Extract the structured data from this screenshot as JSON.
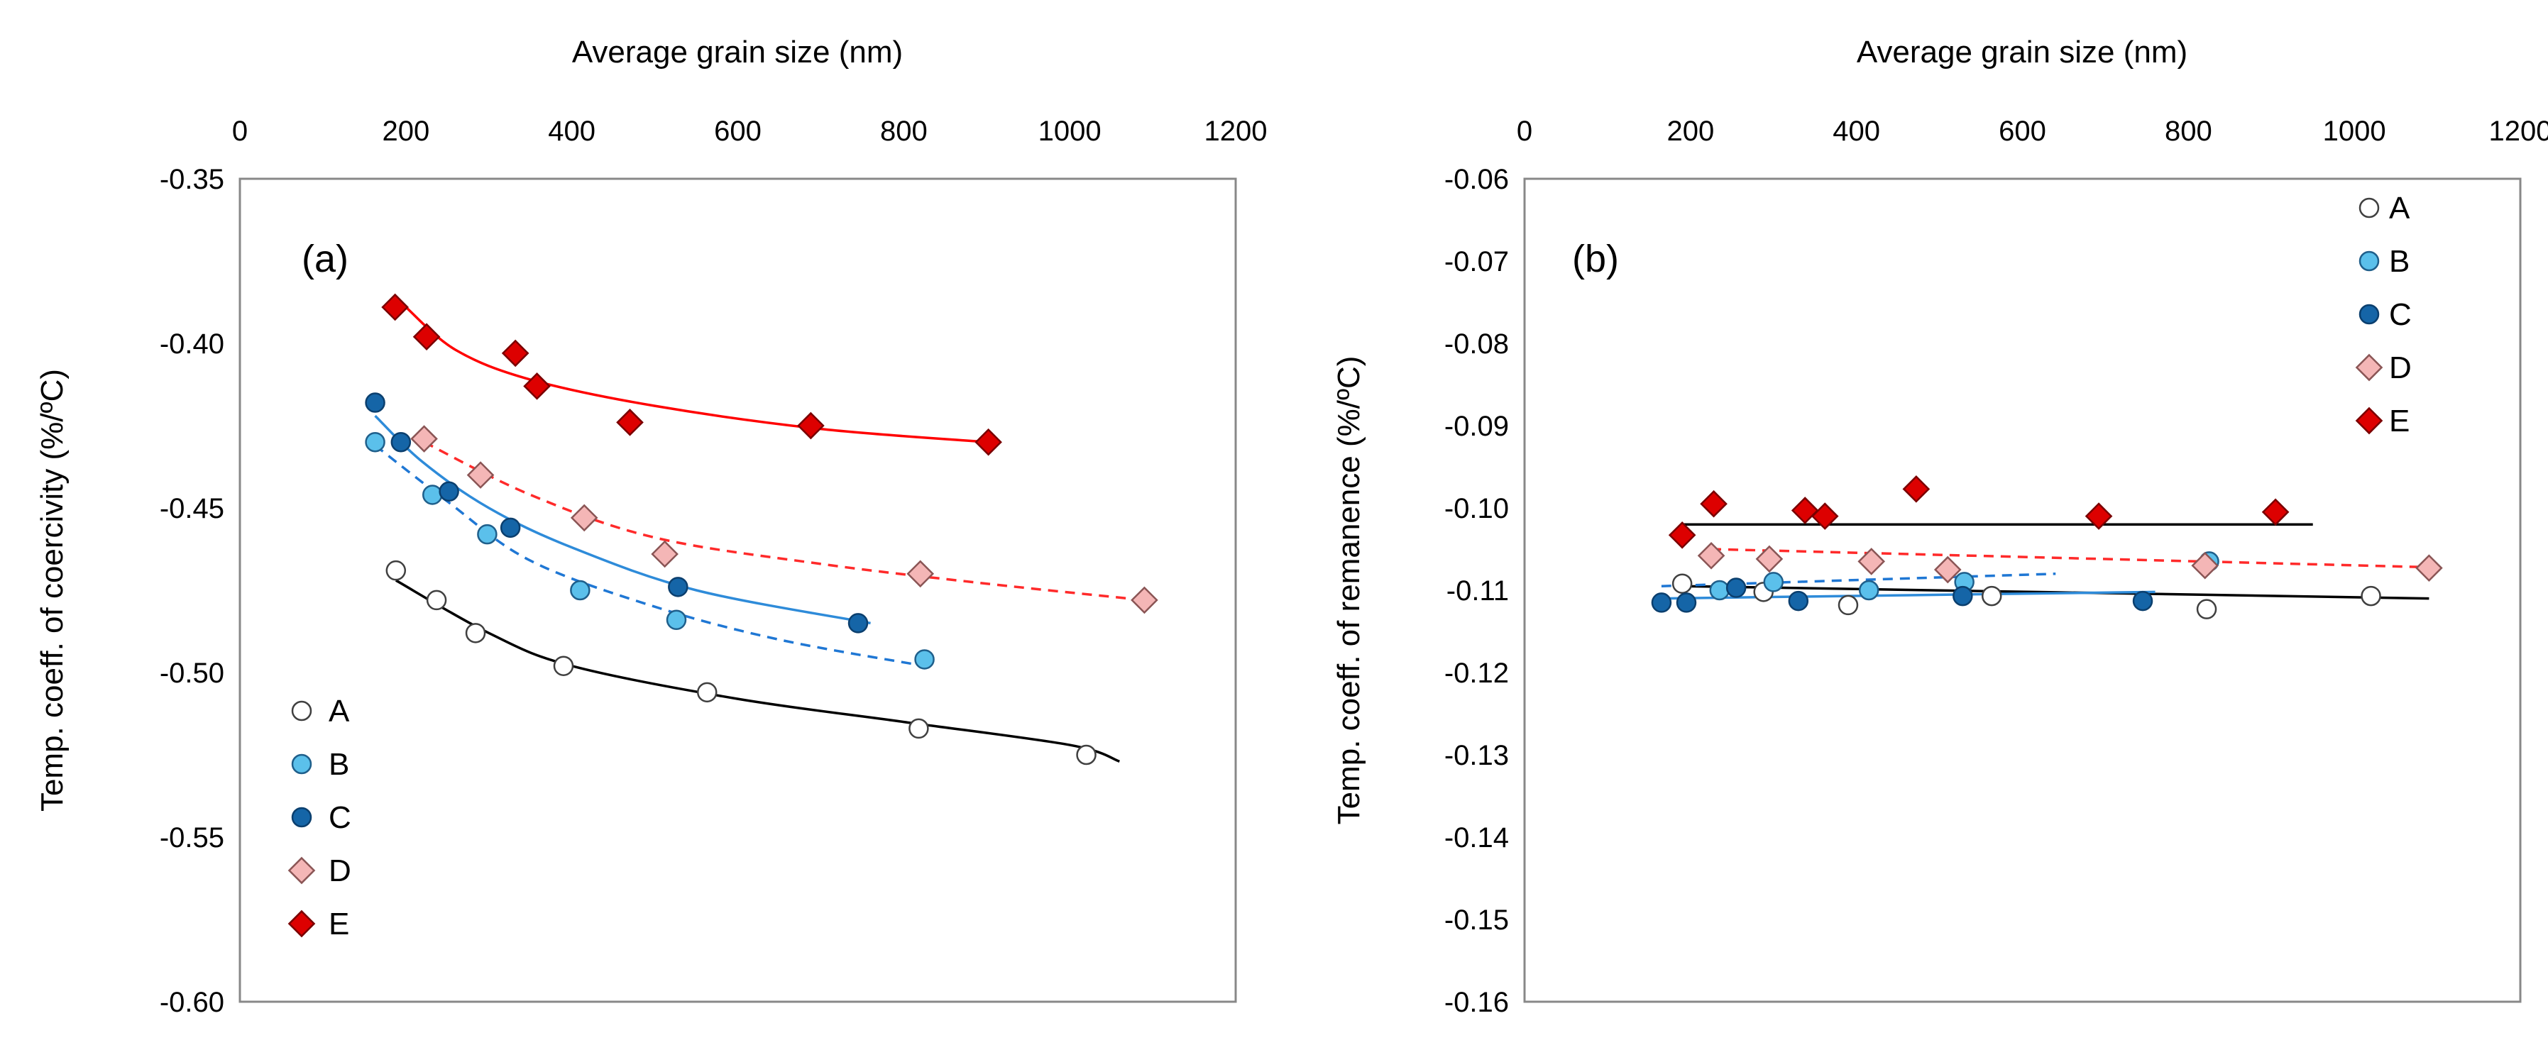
{
  "chart_data": [
    {
      "panel": "(a)",
      "type": "scatter",
      "xlabel": "Average  grain  size (nm)",
      "ylabel": "Temp. coeff.  of coercivity  (%/ºC)",
      "xlim": [
        0,
        1200
      ],
      "ylim": [
        -0.6,
        -0.35
      ],
      "xticks": [
        0,
        200,
        400,
        600,
        800,
        1000,
        1200
      ],
      "yticks": [
        -0.35,
        -0.4,
        -0.45,
        -0.5,
        -0.55,
        -0.6
      ],
      "ytick_labels": [
        "-0.35",
        "-0.40",
        "-0.45",
        "-0.50",
        "-0.55",
        "-0.60"
      ],
      "grid": false,
      "legend_position": "bottom-left",
      "series": [
        {
          "name": "A",
          "marker": "circle",
          "fill": "#ffffff",
          "stroke": "#404040",
          "points": [
            [
              188,
              -0.469
            ],
            [
              237,
              -0.478
            ],
            [
              284,
              -0.488
            ],
            [
              390,
              -0.498
            ],
            [
              563,
              -0.506
            ],
            [
              818,
              -0.517
            ],
            [
              1020,
              -0.525
            ]
          ],
          "fit": [
            [
              188,
              -0.472
            ],
            [
              300,
              -0.488
            ],
            [
              400,
              -0.498
            ],
            [
              600,
              -0.508
            ],
            [
              800,
              -0.515
            ],
            [
              1000,
              -0.522
            ],
            [
              1060,
              -0.527
            ]
          ],
          "fit_color": "#000000",
          "fit_dash": false
        },
        {
          "name": "B",
          "marker": "circle",
          "fill": "#5bc0eb",
          "stroke": "#1f5f8b",
          "points": [
            [
              163,
              -0.43
            ],
            [
              232,
              -0.446
            ],
            [
              298,
              -0.458
            ],
            [
              410,
              -0.475
            ],
            [
              526,
              -0.484
            ],
            [
              825,
              -0.496
            ]
          ],
          "fit": [
            [
              163,
              -0.431
            ],
            [
              250,
              -0.448
            ],
            [
              350,
              -0.466
            ],
            [
              500,
              -0.48
            ],
            [
              650,
              -0.49
            ],
            [
              825,
              -0.498
            ]
          ],
          "fit_color": "#1f77d4",
          "fit_dash": true
        },
        {
          "name": "C",
          "marker": "circle",
          "fill": "#1565a7",
          "stroke": "#0b3f6e",
          "points": [
            [
              163,
              -0.418
            ],
            [
              194,
              -0.43
            ],
            [
              252,
              -0.445
            ],
            [
              326,
              -0.456
            ],
            [
              528,
              -0.474
            ],
            [
              745,
              -0.485
            ]
          ],
          "fit": [
            [
              163,
              -0.422
            ],
            [
              220,
              -0.436
            ],
            [
              300,
              -0.45
            ],
            [
              400,
              -0.462
            ],
            [
              550,
              -0.475
            ],
            [
              760,
              -0.485
            ]
          ],
          "fit_color": "#2e8bd9",
          "fit_dash": false
        },
        {
          "name": "D",
          "marker": "diamond",
          "fill": "#f4b6b6",
          "stroke": "#8a5555",
          "points": [
            [
              222,
              -0.429
            ],
            [
              290,
              -0.44
            ],
            [
              415,
              -0.453
            ],
            [
              512,
              -0.464
            ],
            [
              820,
              -0.47
            ],
            [
              1090,
              -0.478
            ]
          ],
          "fit": [
            [
              222,
              -0.43
            ],
            [
              350,
              -0.446
            ],
            [
              500,
              -0.459
            ],
            [
              700,
              -0.467
            ],
            [
              900,
              -0.473
            ],
            [
              1090,
              -0.478
            ]
          ],
          "fit_color": "#ff2a2a",
          "fit_dash": true
        },
        {
          "name": "E",
          "marker": "diamond",
          "fill": "#dd0000",
          "stroke": "#7a0000",
          "points": [
            [
              187,
              -0.389
            ],
            [
              225,
              -0.398
            ],
            [
              332,
              -0.403
            ],
            [
              358,
              -0.413
            ],
            [
              470,
              -0.424
            ],
            [
              688,
              -0.425
            ],
            [
              902,
              -0.43
            ]
          ],
          "fit": [
            [
              200,
              -0.389
            ],
            [
              260,
              -0.402
            ],
            [
              350,
              -0.411
            ],
            [
              500,
              -0.419
            ],
            [
              700,
              -0.426
            ],
            [
              902,
              -0.43
            ]
          ],
          "fit_color": "#ff0000",
          "fit_dash": false
        }
      ]
    },
    {
      "panel": "(b)",
      "type": "scatter",
      "xlabel": "Average  grain  size (nm)",
      "ylabel": "Temp. coeff.  of remanence  (%/ºC)",
      "xlim": [
        0,
        1200
      ],
      "ylim": [
        -0.16,
        -0.06
      ],
      "xticks": [
        0,
        200,
        400,
        600,
        800,
        1000,
        1200
      ],
      "yticks": [
        -0.06,
        -0.07,
        -0.08,
        -0.09,
        -0.1,
        -0.11,
        -0.12,
        -0.13,
        -0.14,
        -0.15,
        -0.16
      ],
      "ytick_labels": [
        "-0.06",
        "-0.07",
        "-0.08",
        "-0.09",
        "-0.10",
        "-0.11",
        "-0.12",
        "-0.13",
        "-0.14",
        "-0.15",
        "-0.16"
      ],
      "grid": false,
      "legend_position": "top-right",
      "series": [
        {
          "name": "A",
          "marker": "circle",
          "fill": "#ffffff",
          "stroke": "#404040",
          "points": [
            [
              190,
              -0.1092
            ],
            [
              288,
              -0.1102
            ],
            [
              390,
              -0.1118
            ],
            [
              563,
              -0.1107
            ],
            [
              822,
              -0.1123
            ],
            [
              1020,
              -0.1107
            ]
          ],
          "fit": [
            [
              190,
              -0.1095
            ],
            [
              1090,
              -0.111
            ]
          ],
          "fit_color": "#000000",
          "fit_dash": false
        },
        {
          "name": "B",
          "marker": "circle",
          "fill": "#5bc0eb",
          "stroke": "#1f5f8b",
          "points": [
            [
              235,
              -0.11
            ],
            [
              300,
              -0.109
            ],
            [
              415,
              -0.11
            ],
            [
              530,
              -0.109
            ],
            [
              825,
              -0.1065
            ]
          ],
          "fit": [
            [
              165,
              -0.1095
            ],
            [
              640,
              -0.108
            ]
          ],
          "fit_color": "#1f77d4",
          "fit_dash": true
        },
        {
          "name": "C",
          "marker": "circle",
          "fill": "#1565a7",
          "stroke": "#0b3f6e",
          "points": [
            [
              165,
              -0.1115
            ],
            [
              195,
              -0.1115
            ],
            [
              255,
              -0.1097
            ],
            [
              330,
              -0.1113
            ],
            [
              528,
              -0.1107
            ],
            [
              745,
              -0.1113
            ]
          ],
          "fit": [
            [
              165,
              -0.111
            ],
            [
              760,
              -0.1102
            ]
          ],
          "fit_color": "#2e8bd9",
          "fit_dash": false
        },
        {
          "name": "D",
          "marker": "diamond",
          "fill": "#f4b6b6",
          "stroke": "#8a5555",
          "points": [
            [
              225,
              -0.1058
            ],
            [
              295,
              -0.1062
            ],
            [
              418,
              -0.1065
            ],
            [
              510,
              -0.1075
            ],
            [
              820,
              -0.107
            ],
            [
              1090,
              -0.1073
            ]
          ],
          "fit": [
            [
              225,
              -0.105
            ],
            [
              1090,
              -0.1072
            ]
          ],
          "fit_color": "#ff2a2a",
          "fit_dash": true
        },
        {
          "name": "E",
          "marker": "diamond",
          "fill": "#dd0000",
          "stroke": "#7a0000",
          "points": [
            [
              190,
              -0.1033
            ],
            [
              228,
              -0.0995
            ],
            [
              338,
              -0.1003
            ],
            [
              362,
              -0.101
            ],
            [
              472,
              -0.0977
            ],
            [
              692,
              -0.101
            ],
            [
              905,
              -0.1005
            ]
          ],
          "fit": [
            [
              190,
              -0.102
            ],
            [
              950,
              -0.102
            ]
          ],
          "fit_color": "#000000",
          "fit_dash": false
        }
      ]
    }
  ]
}
